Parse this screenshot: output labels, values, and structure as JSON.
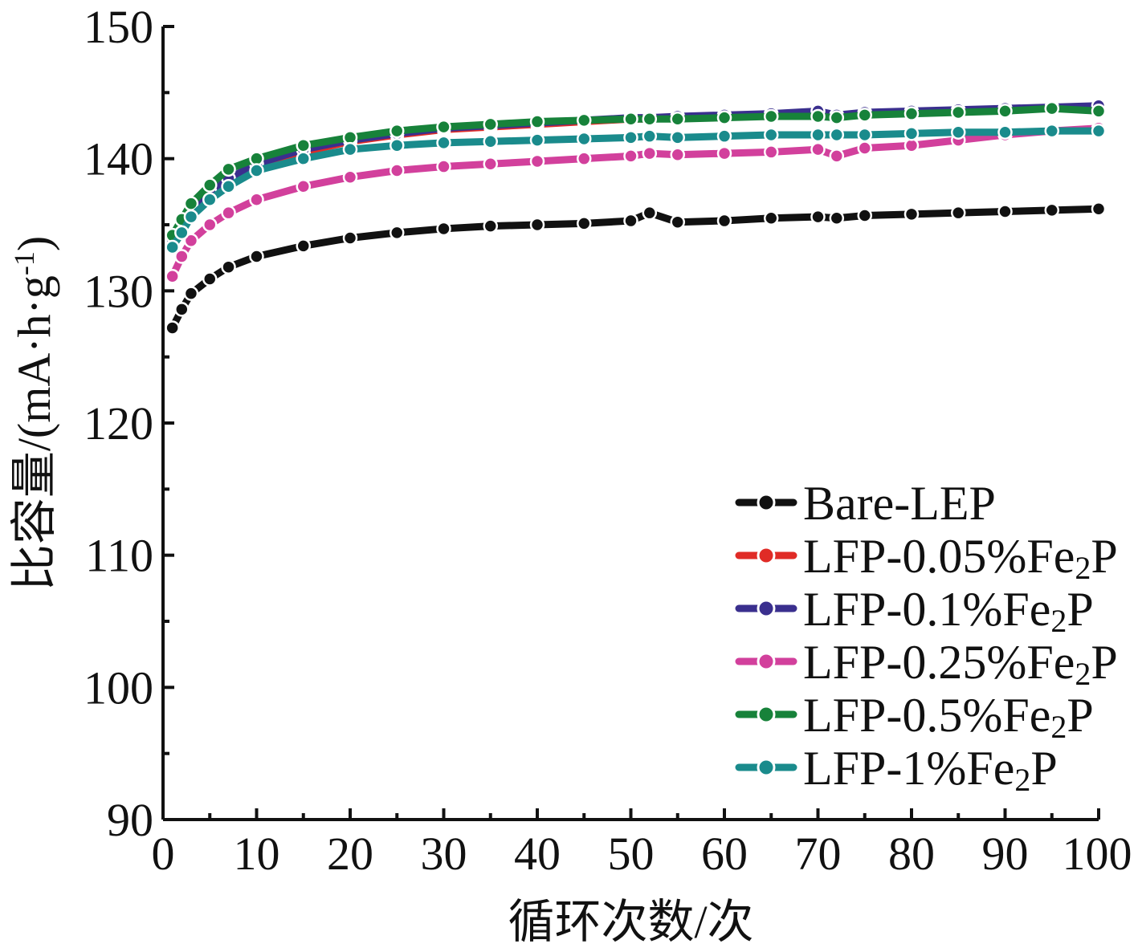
{
  "chart_data": {
    "type": "line",
    "title": "",
    "xlabel": "循环次数/次",
    "ylabel": "比容量/(mA·h·g",
    "ylabel_sup": "-1",
    "ylabel_close": ")",
    "xlim": [
      0,
      100
    ],
    "ylim": [
      90,
      150
    ],
    "xticks": [
      0,
      10,
      20,
      30,
      40,
      50,
      60,
      70,
      80,
      90,
      100
    ],
    "yticks": [
      90,
      100,
      110,
      120,
      130,
      140,
      150
    ],
    "grid": false,
    "legend_position": "bottom-right",
    "x": [
      1,
      2,
      3,
      5,
      7,
      10,
      15,
      20,
      25,
      30,
      35,
      40,
      45,
      50,
      52,
      55,
      60,
      65,
      70,
      72,
      75,
      80,
      85,
      90,
      95,
      100
    ],
    "series": [
      {
        "name": "Bare-LEP",
        "color": "#111111",
        "values": [
          127.2,
          128.6,
          129.8,
          130.9,
          131.8,
          132.6,
          133.4,
          134.0,
          134.4,
          134.7,
          134.9,
          135.0,
          135.1,
          135.3,
          135.9,
          135.2,
          135.3,
          135.5,
          135.6,
          135.5,
          135.7,
          135.8,
          135.9,
          136.0,
          136.1,
          136.2
        ]
      },
      {
        "name": "LFP-0.05%Fe2P",
        "name_main": "LFP-0.05%Fe",
        "name_sub": "2",
        "name_end": "P",
        "color": "#e02b26",
        "values": [
          133.6,
          134.8,
          135.9,
          137.3,
          138.3,
          139.4,
          140.5,
          141.3,
          141.8,
          142.2,
          142.4,
          142.6,
          142.8,
          143.0,
          143.0,
          143.1,
          143.2,
          143.3,
          143.4,
          143.2,
          143.4,
          143.5,
          143.6,
          143.7,
          143.8,
          143.9
        ]
      },
      {
        "name": "LFP-0.1%Fe2P",
        "name_main": "LFP-0.1%Fe",
        "name_sub": "2",
        "name_end": "P",
        "color": "#3a2f8e",
        "values": [
          133.9,
          135.0,
          136.1,
          137.5,
          138.5,
          139.6,
          140.7,
          141.4,
          141.9,
          142.3,
          142.5,
          142.7,
          142.9,
          143.1,
          143.1,
          143.2,
          143.3,
          143.4,
          143.6,
          143.3,
          143.5,
          143.6,
          143.7,
          143.8,
          143.9,
          144.0
        ]
      },
      {
        "name": "LFP-0.25%Fe2P",
        "name_main": "LFP-0.25%Fe",
        "name_sub": "2",
        "name_end": "P",
        "color": "#d2409c",
        "values": [
          131.1,
          132.6,
          133.8,
          135.0,
          135.9,
          136.9,
          137.9,
          138.6,
          139.1,
          139.4,
          139.6,
          139.8,
          140.0,
          140.2,
          140.4,
          140.3,
          140.4,
          140.5,
          140.7,
          140.2,
          140.8,
          141.0,
          141.4,
          141.8,
          142.1,
          142.3
        ]
      },
      {
        "name": "LFP-0.5%Fe2P",
        "name_main": "LFP-0.5%Fe",
        "name_sub": "2",
        "name_end": "P",
        "color": "#17823a",
        "values": [
          134.2,
          135.4,
          136.6,
          138.0,
          139.2,
          140.0,
          141.0,
          141.6,
          142.1,
          142.4,
          142.6,
          142.8,
          142.9,
          143.0,
          143.0,
          143.0,
          143.1,
          143.2,
          143.2,
          143.1,
          143.3,
          143.4,
          143.5,
          143.6,
          143.8,
          143.6
        ]
      },
      {
        "name": "LFP-1%Fe2P",
        "name_main": "LFP-1%Fe",
        "name_sub": "2",
        "name_end": "P",
        "color": "#1a8b8c",
        "values": [
          133.3,
          134.4,
          135.6,
          136.9,
          137.9,
          139.1,
          140.0,
          140.7,
          141.0,
          141.2,
          141.3,
          141.4,
          141.5,
          141.6,
          141.7,
          141.6,
          141.7,
          141.8,
          141.8,
          141.8,
          141.8,
          141.9,
          142.0,
          142.0,
          142.1,
          142.1
        ]
      }
    ]
  }
}
